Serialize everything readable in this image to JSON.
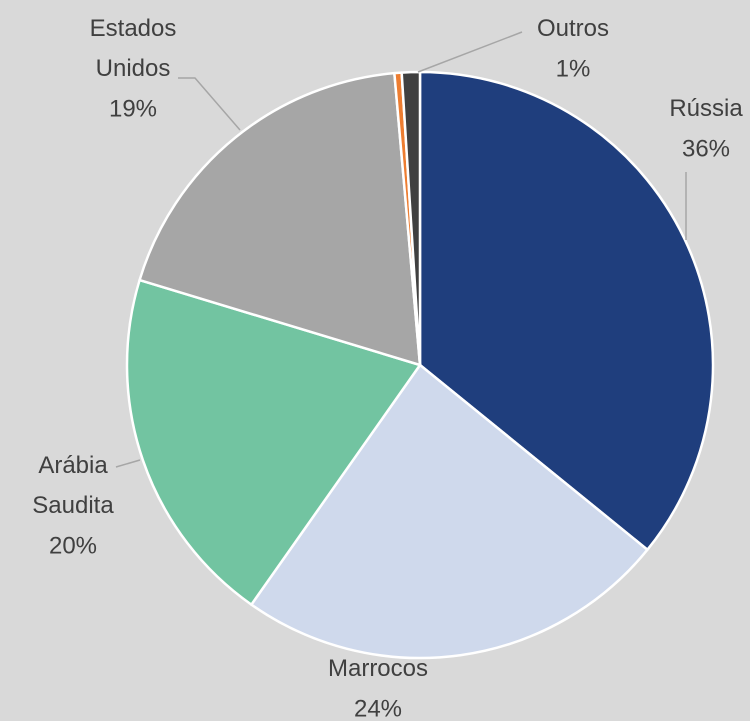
{
  "chart_data": {
    "type": "pie",
    "categories": [
      "Rússia",
      "Marrocos",
      "Arábia Saudita",
      "Estados Unidos",
      null,
      "Outros"
    ],
    "values": [
      36,
      24,
      20,
      19,
      0.4,
      1
    ],
    "value_labels": [
      "36%",
      "24%",
      "20%",
      "19%",
      null,
      "1%"
    ],
    "colors": [
      "#1f3e7d",
      "#cfd9ec",
      "#72c4a1",
      "#a6a6a6",
      "#ed7d31",
      "#404040"
    ]
  }
}
